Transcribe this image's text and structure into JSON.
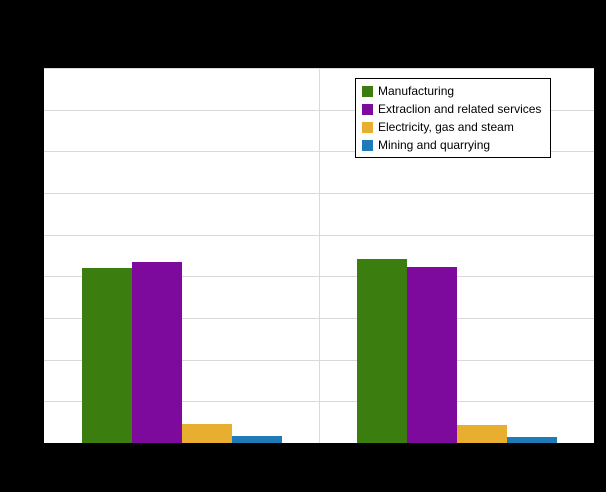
{
  "chart_data": {
    "type": "bar",
    "title": "",
    "categories": [
      "",
      ""
    ],
    "series": [
      {
        "name": "Manufacturing",
        "color": "#3B7D0E",
        "values": [
          0.467,
          0.491
        ]
      },
      {
        "name": "Extraclion and related services",
        "color": "#7D0A9C",
        "values": [
          0.483,
          0.469
        ]
      },
      {
        "name": "Electricity, gas and steam",
        "color": "#E8AE30",
        "values": [
          0.051,
          0.048
        ]
      },
      {
        "name": "Mining and quarrying",
        "color": "#1F7AB8",
        "values": [
          0.019,
          0.016
        ]
      }
    ],
    "ylim": [
      0,
      1
    ],
    "note": "Y-axis tick labels, title and category labels are not visible in the image (black text on black background); values are expressed as fractions of the visible plot height.",
    "grid": {
      "visible": true,
      "h_divisions": 9,
      "v_divisions": 2
    },
    "legend_position": "top-right",
    "plot_background": "#ffffff",
    "page_background": "#000000",
    "gridline_color": "#d9d9d9"
  }
}
